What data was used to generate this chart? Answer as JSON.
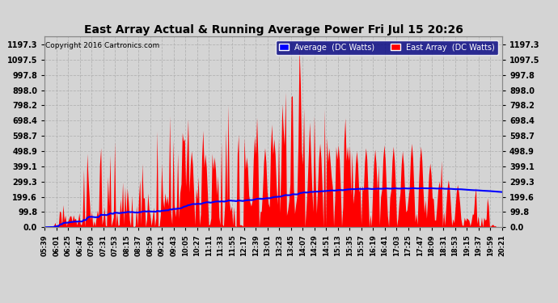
{
  "title": "East Array Actual & Running Average Power Fri Jul 15 20:26",
  "copyright": "Copyright 2016 Cartronics.com",
  "legend_avg": "Average  (DC Watts)",
  "legend_east": "East Array  (DC Watts)",
  "yticks": [
    0.0,
    99.8,
    199.6,
    299.3,
    399.1,
    498.9,
    598.7,
    698.4,
    798.2,
    898.0,
    997.8,
    1097.5,
    1197.3
  ],
  "ymax": 1250,
  "bg_color": "#d4d4d4",
  "plot_bg_color": "#d4d4d4",
  "fill_color": "#ff0000",
  "avg_line_color": "#0000ff",
  "grid_color": "#b0b0b0",
  "xtick_labels": [
    "05:39",
    "06:01",
    "06:25",
    "06:47",
    "07:09",
    "07:31",
    "07:53",
    "08:15",
    "08:37",
    "08:59",
    "09:21",
    "09:43",
    "10:05",
    "10:27",
    "11:11",
    "11:33",
    "11:55",
    "12:17",
    "12:39",
    "13:01",
    "13:23",
    "13:45",
    "14:07",
    "14:29",
    "14:51",
    "15:13",
    "15:35",
    "15:57",
    "16:19",
    "16:41",
    "17:03",
    "17:25",
    "17:47",
    "18:09",
    "18:31",
    "18:53",
    "19:15",
    "19:37",
    "19:59",
    "20:21"
  ],
  "num_points": 400
}
